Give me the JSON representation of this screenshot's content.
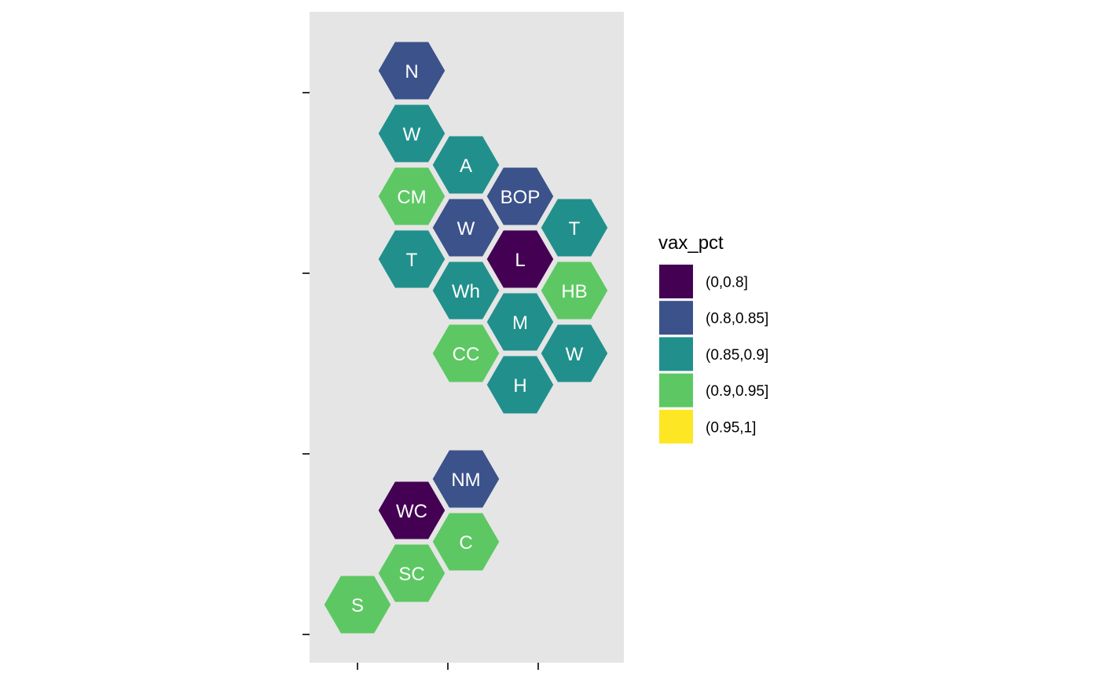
{
  "chart_data": {
    "type": "hexmap",
    "title": "",
    "xlabel": "",
    "ylabel": "",
    "grid": false,
    "legend": {
      "title": "vax_pct",
      "position": "right",
      "entries": [
        {
          "label": "(0,0.8]",
          "color": "#440154"
        },
        {
          "label": "(0.8,0.85]",
          "color": "#3B528B"
        },
        {
          "label": "(0.85,0.9]",
          "color": "#21908C"
        },
        {
          "label": "(0.9,0.95]",
          "color": "#5DC863"
        },
        {
          "label": "(0.95,1]",
          "color": "#FDE725"
        }
      ]
    },
    "cells": [
      {
        "label": "N",
        "col": 1,
        "row": 0,
        "category": "(0.8,0.85]"
      },
      {
        "label": "W",
        "col": 1,
        "row": 1,
        "category": "(0.85,0.9]"
      },
      {
        "label": "A",
        "col": 2,
        "row": 1.5,
        "category": "(0.85,0.9]"
      },
      {
        "label": "CM",
        "col": 1,
        "row": 2,
        "category": "(0.9,0.95]"
      },
      {
        "label": "BOP",
        "col": 3,
        "row": 2,
        "category": "(0.8,0.85]"
      },
      {
        "label": "W",
        "col": 2,
        "row": 2.5,
        "category": "(0.8,0.85]"
      },
      {
        "label": "T",
        "col": 4,
        "row": 2.5,
        "category": "(0.85,0.9]"
      },
      {
        "label": "T",
        "col": 1,
        "row": 3,
        "category": "(0.85,0.9]"
      },
      {
        "label": "L",
        "col": 3,
        "row": 3,
        "category": "(0,0.8]"
      },
      {
        "label": "Wh",
        "col": 2,
        "row": 3.5,
        "category": "(0.85,0.9]"
      },
      {
        "label": "HB",
        "col": 4,
        "row": 3.5,
        "category": "(0.9,0.95]"
      },
      {
        "label": "M",
        "col": 3,
        "row": 4,
        "category": "(0.85,0.9]"
      },
      {
        "label": "CC",
        "col": 2,
        "row": 4.5,
        "category": "(0.9,0.95]"
      },
      {
        "label": "W",
        "col": 4,
        "row": 4.5,
        "category": "(0.85,0.9]"
      },
      {
        "label": "H",
        "col": 3,
        "row": 5,
        "category": "(0.85,0.9]"
      },
      {
        "label": "NM",
        "col": 2,
        "row": 6.5,
        "category": "(0.8,0.85]"
      },
      {
        "label": "WC",
        "col": 1,
        "row": 7,
        "category": "(0,0.8]"
      },
      {
        "label": "C",
        "col": 2,
        "row": 7.5,
        "category": "(0.9,0.95]"
      },
      {
        "label": "SC",
        "col": 1,
        "row": 8,
        "category": "(0.9,0.95]"
      },
      {
        "label": "S",
        "col": 0,
        "row": 8.5,
        "category": "(0.9,0.95]"
      }
    ]
  }
}
